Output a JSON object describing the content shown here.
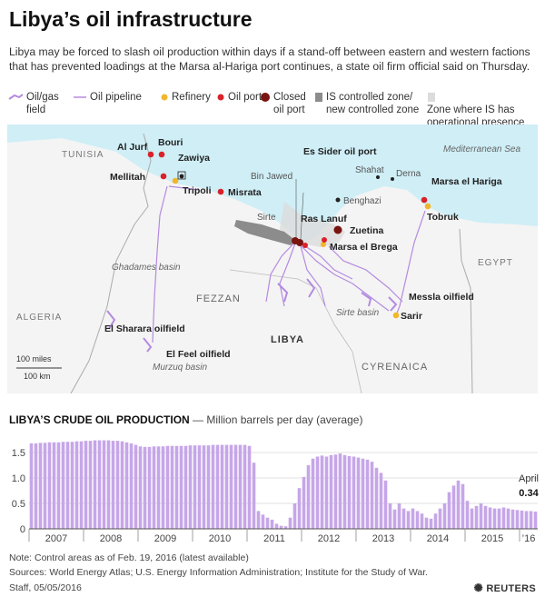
{
  "title": "Libya’s oil infrastructure",
  "subtitle": "Libya may be forced to slash oil production within days if a stand-off between eastern and western factions that has prevented loadings at the Marsa al-Hariga port continues, a state oil firm official said on Thursday.",
  "legend": {
    "field": "Oil/gas field",
    "pipeline": "Oil pipeline",
    "refinery": "Refinery",
    "port": "Oil port",
    "closed_port": "Closed oil port",
    "is_zone": "IS controlled zone/ new controlled zone",
    "is_presence": "Zone where IS has operational presence"
  },
  "map": {
    "sea": "Mediterranean Sea",
    "countries": {
      "tunisia": "TUNISIA",
      "algeria": "ALGERIA",
      "egypt": "EGYPT",
      "libya": "LIBYA"
    },
    "regions": {
      "fezzan": "FEZZAN",
      "cyrenaica": "CYRENAICA"
    },
    "basins": {
      "ghadames": "Ghadames basin",
      "sirte": "Sirte basin",
      "murzuq": "Murzuq basin"
    },
    "cities": {
      "sirte": "Sirte",
      "bin_jawed": "Bin Jawed",
      "benghazi": "Benghazi",
      "shahat": "Shahat",
      "derna": "Derna"
    },
    "places": {
      "al_jurf": "Al Jurf",
      "bouri": "Bouri",
      "zawiya": "Zawiya",
      "mellitah": "Mellitah",
      "tripoli": "Tripoli",
      "misrata": "Misrata",
      "es_sider": "Es Sider oil port",
      "ras_lanuf": "Ras Lanuf",
      "zuetina": "Zuetina",
      "marsa_el_brega": "Marsa el Brega",
      "marsa_el_hariga": "Marsa el Hariga",
      "tobruk": "Tobruk",
      "messla": "Messla oilfield",
      "sarir": "Sarir",
      "el_sharara": "El Sharara oilfield",
      "el_feel": "El Feel oilfield"
    },
    "scale": {
      "miles": "100 miles",
      "km": "100 km"
    }
  },
  "chart_header": {
    "title": "LIBYA’S CRUDE OIL PRODUCTION",
    "unit": "— Million barrels per day (average)"
  },
  "chart_data": {
    "type": "bar",
    "title": "LIBYA’S CRUDE OIL PRODUCTION",
    "ylabel": "Million barrels per day (average)",
    "ylim": [
      0,
      1.75
    ],
    "yticks": [
      0,
      0.5,
      1.0,
      1.5
    ],
    "yticklabels": [
      "0",
      "0.5",
      "1.0",
      "1.5"
    ],
    "xticklabels": [
      "2007",
      "2008",
      "2009",
      "2010",
      "2011",
      "2012",
      "2013",
      "2014",
      "2015",
      "’16"
    ],
    "frequency": "monthly",
    "start": "2007-01",
    "end": "2016-04",
    "values": [
      1.68,
      1.68,
      1.69,
      1.69,
      1.7,
      1.7,
      1.7,
      1.71,
      1.71,
      1.71,
      1.72,
      1.72,
      1.73,
      1.73,
      1.74,
      1.74,
      1.74,
      1.74,
      1.73,
      1.73,
      1.72,
      1.7,
      1.68,
      1.65,
      1.62,
      1.61,
      1.61,
      1.62,
      1.62,
      1.62,
      1.63,
      1.63,
      1.63,
      1.63,
      1.63,
      1.64,
      1.64,
      1.64,
      1.64,
      1.64,
      1.65,
      1.65,
      1.65,
      1.65,
      1.65,
      1.65,
      1.65,
      1.65,
      1.63,
      1.3,
      0.35,
      0.28,
      0.22,
      0.18,
      0.1,
      0.06,
      0.05,
      0.22,
      0.5,
      0.8,
      1.02,
      1.25,
      1.38,
      1.42,
      1.44,
      1.42,
      1.45,
      1.46,
      1.48,
      1.45,
      1.43,
      1.42,
      1.4,
      1.38,
      1.36,
      1.32,
      1.2,
      1.1,
      0.95,
      0.5,
      0.38,
      0.5,
      0.4,
      0.35,
      0.4,
      0.35,
      0.3,
      0.22,
      0.2,
      0.3,
      0.4,
      0.5,
      0.72,
      0.85,
      0.95,
      0.88,
      0.55,
      0.4,
      0.45,
      0.5,
      0.45,
      0.42,
      0.4,
      0.4,
      0.42,
      0.4,
      0.38,
      0.37,
      0.36,
      0.35,
      0.35,
      0.34
    ],
    "annotation": {
      "label": "April",
      "value": "0.34"
    },
    "color": "#c6a6e8",
    "grid": true
  },
  "note": "Note: Control areas as of Feb. 19, 2016 (latest available)",
  "sources": "Sources: World Energy Atlas; U.S. Energy Information Administration; Institute for the Study of War.",
  "staff": "Staff, 05/05/2016",
  "brand": "REUTERS",
  "colors": {
    "sea": "#cfeef6",
    "land": "#f4f4f4",
    "pipeline": "#b48ae0",
    "port": "#d9222a",
    "closed_port": "#7a1410",
    "refinery": "#f2b62b",
    "is_zone": "#8c8c8c",
    "is_presence": "#dcdcdc",
    "bars": "#c6a6e8"
  }
}
